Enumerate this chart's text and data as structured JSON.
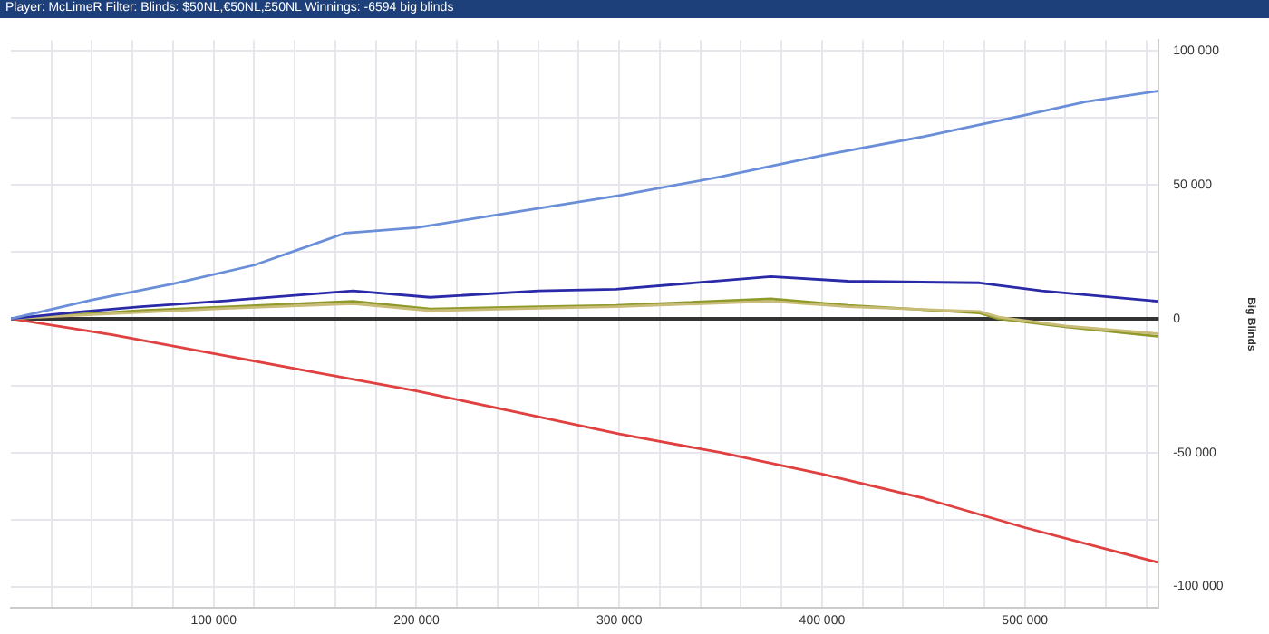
{
  "chart_data": {
    "type": "line",
    "title": "Player: McLimeR Filter: Blinds: $50NL,€50NL,£50NL Winnings: -6594 big blinds",
    "ylabel": "Big Blinds",
    "xlim": [
      0,
      566000
    ],
    "ylim": [
      -108000,
      104000
    ],
    "xticks": [
      {
        "value": 20000,
        "label": null
      },
      {
        "value": 40000,
        "label": null
      },
      {
        "value": 60000,
        "label": null
      },
      {
        "value": 80000,
        "label": null
      },
      {
        "value": 100000,
        "label": "100 000"
      },
      {
        "value": 120000,
        "label": null
      },
      {
        "value": 140000,
        "label": null
      },
      {
        "value": 160000,
        "label": null
      },
      {
        "value": 180000,
        "label": null
      },
      {
        "value": 200000,
        "label": "200 000"
      },
      {
        "value": 220000,
        "label": null
      },
      {
        "value": 240000,
        "label": null
      },
      {
        "value": 260000,
        "label": null
      },
      {
        "value": 280000,
        "label": null
      },
      {
        "value": 300000,
        "label": "300 000"
      },
      {
        "value": 320000,
        "label": null
      },
      {
        "value": 340000,
        "label": null
      },
      {
        "value": 360000,
        "label": null
      },
      {
        "value": 380000,
        "label": null
      },
      {
        "value": 400000,
        "label": "400 000"
      },
      {
        "value": 420000,
        "label": null
      },
      {
        "value": 440000,
        "label": null
      },
      {
        "value": 460000,
        "label": null
      },
      {
        "value": 480000,
        "label": null
      },
      {
        "value": 500000,
        "label": "500 000"
      },
      {
        "value": 520000,
        "label": null
      },
      {
        "value": 540000,
        "label": null
      },
      {
        "value": 560000,
        "label": null
      }
    ],
    "yticks": [
      {
        "value": -100000,
        "label": "-100 000"
      },
      {
        "value": -75000,
        "label": null
      },
      {
        "value": -50000,
        "label": "-50 000"
      },
      {
        "value": -25000,
        "label": null
      },
      {
        "value": 0,
        "label": "0"
      },
      {
        "value": 25000,
        "label": null
      },
      {
        "value": 50000,
        "label": "50 000"
      },
      {
        "value": 75000,
        "label": null
      },
      {
        "value": 100000,
        "label": "100 000"
      }
    ],
    "grid": true,
    "legend": false,
    "marker": "none",
    "line_style": "solid",
    "ref_lines": [
      {
        "axis": "y",
        "value": 0,
        "color": "#333333"
      }
    ],
    "series": [
      {
        "color": "#6a8fd8",
        "x": [
          0,
          40000,
          80000,
          120000,
          150000,
          165000,
          200000,
          250000,
          300000,
          350000,
          400000,
          450000,
          500000,
          530000,
          565600
        ],
        "values": [
          0,
          7000,
          13000,
          20000,
          28000,
          32000,
          34000,
          40000,
          46000,
          53000,
          61000,
          68000,
          76000,
          81000,
          85000
        ]
      },
      {
        "color": "#2a2aa8",
        "x": [
          0,
          31300,
          64200,
          107600,
          168700,
          206800,
          260300,
          298400,
          374800,
          412900,
          477700,
          508300,
          565600
        ],
        "values": [
          0,
          2400,
          4500,
          6800,
          10400,
          8000,
          10400,
          11000,
          15700,
          14000,
          13400,
          10400,
          6500
        ]
      },
      {
        "color": "#c8bc78",
        "x": [
          0,
          31300,
          64200,
          107600,
          168700,
          206800,
          260300,
          298400,
          374800,
          412900,
          477700,
          487000,
          520000,
          565600
        ],
        "values": [
          0,
          1200,
          2400,
          3900,
          5600,
          3000,
          3900,
          4500,
          6500,
          4500,
          2700,
          600,
          -2700,
          -5600
        ]
      },
      {
        "color": "#8f9a2a",
        "x": [
          0,
          31300,
          64200,
          107600,
          168700,
          206800,
          260300,
          298400,
          374800,
          412900,
          477700,
          487000,
          520000,
          565600
        ],
        "values": [
          0,
          1500,
          3000,
          4500,
          6500,
          3600,
          4500,
          5000,
          7400,
          5000,
          2100,
          0,
          -3000,
          -6600
        ]
      },
      {
        "color": "#e04040",
        "x": [
          0,
          50000,
          100000,
          150000,
          200000,
          250000,
          300000,
          350000,
          400000,
          450000,
          500000,
          540000,
          565600
        ],
        "values": [
          0,
          -6000,
          -13000,
          -20000,
          -27000,
          -35000,
          -43000,
          -50000,
          -58000,
          -67000,
          -78000,
          -86000,
          -91000
        ]
      }
    ]
  }
}
